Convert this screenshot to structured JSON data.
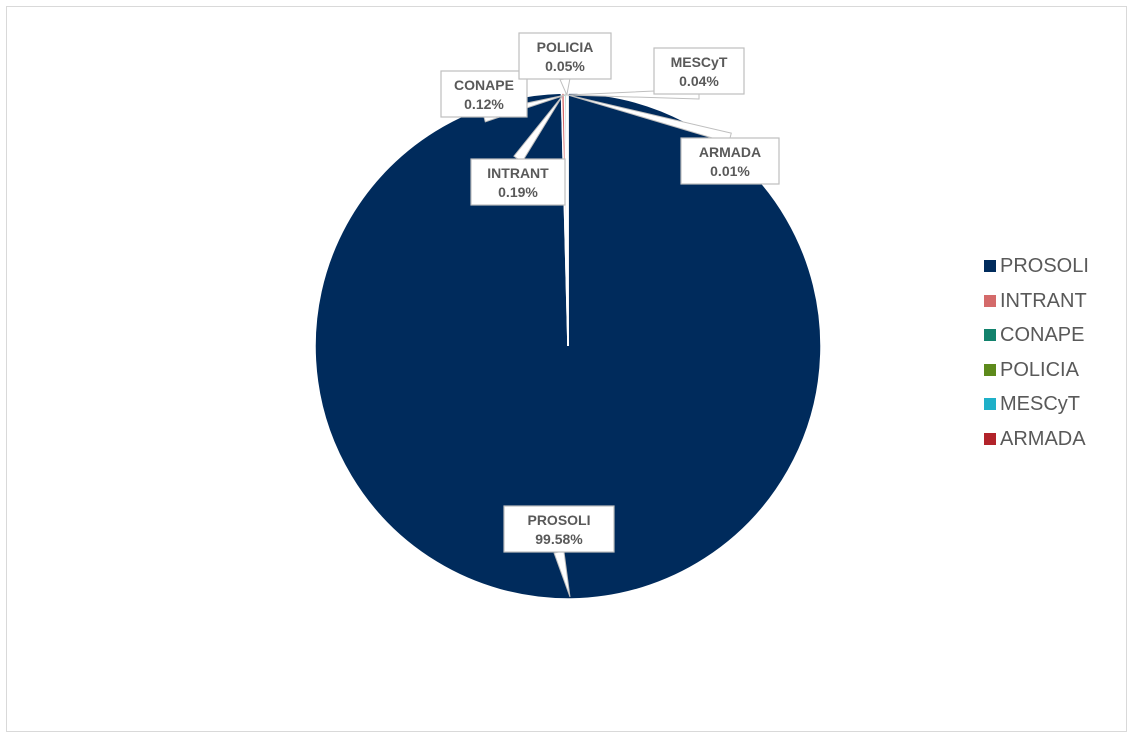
{
  "chart_data": {
    "type": "pie",
    "title": "",
    "categories": [
      "PROSOLI",
      "INTRANT",
      "CONAPE",
      "POLICIA",
      "MESCyT",
      "ARMADA"
    ],
    "values": [
      99.58,
      0.19,
      0.12,
      0.05,
      0.04,
      0.01
    ],
    "data_labels": [
      "99.58%",
      "0.19%",
      "0.12%",
      "0.05%",
      "0.04%",
      "0.01%"
    ],
    "colors": [
      "#002b5c",
      "#d46a6a",
      "#12826c",
      "#5d8a1c",
      "#1fb0c8",
      "#b2232a"
    ],
    "legend": {
      "position": "right",
      "entries": [
        "PROSOLI",
        "INTRANT",
        "CONAPE",
        "POLICIA",
        "MESCyT",
        "ARMADA"
      ]
    },
    "label_style": "callout"
  }
}
